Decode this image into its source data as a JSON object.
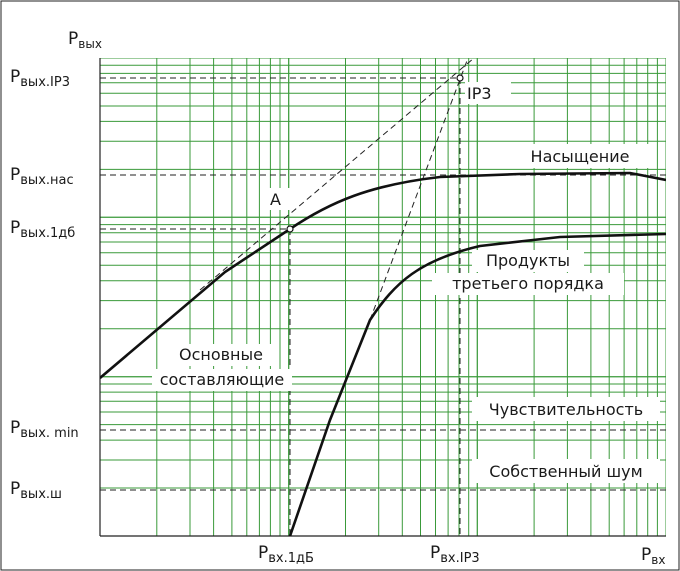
{
  "axes": {
    "y_title": "P",
    "y_title_sub": "вых",
    "x_end": "P",
    "x_end_sub": "вх"
  },
  "y_ticks": [
    {
      "main": "P",
      "sub": "вых.IP3"
    },
    {
      "main": "P",
      "sub": "вых.нас"
    },
    {
      "main": "P",
      "sub": "вых.1дб"
    },
    {
      "main": "P",
      "sub": "вых. min"
    },
    {
      "main": "P",
      "sub": "вых.ш"
    }
  ],
  "x_ticks": [
    {
      "main": "P",
      "sub": "вх.1дБ"
    },
    {
      "main": "P",
      "sub": "вх.IP3"
    }
  ],
  "annotations": {
    "point_a": "A",
    "ip3": "IP3",
    "saturation": "Насыщение",
    "third_order_line1": "Продукты",
    "third_order_line2": "третьего порядка",
    "fundamental_line1": "Основные",
    "fundamental_line2": "составляющие",
    "sensitivity": "Чувствительность",
    "noise": "Собственный шум"
  },
  "colors": {
    "grid": "#3a9a3a",
    "curve": "#111111",
    "frame": "#222222"
  }
}
